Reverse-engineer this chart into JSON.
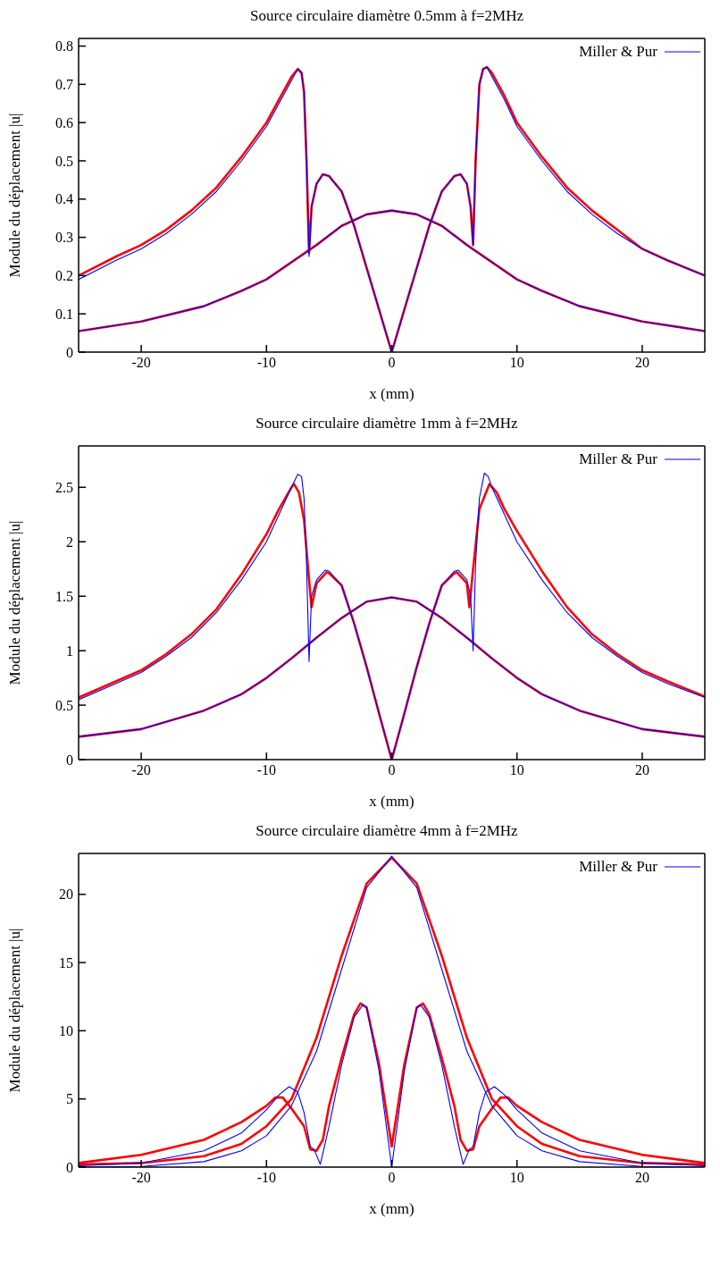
{
  "chart_data": [
    {
      "type": "line",
      "title": "Source circulaire diamètre 0.5mm à f=2MHz",
      "xlabel": "x (mm)",
      "ylabel": "Module du déplacement |u|",
      "xlim": [
        -25,
        25
      ],
      "xticks": [
        -20,
        -10,
        0,
        10,
        20
      ],
      "ylim": [
        0,
        0.82
      ],
      "yticks": [
        0,
        0.1,
        0.2,
        0.3,
        0.4,
        0.5,
        0.6,
        0.7,
        0.8
      ],
      "grid": false,
      "legend": "top right",
      "marker": "none",
      "line_style": "solid",
      "series": [
        {
          "color": "#ff0000",
          "x": [
            -25,
            -22,
            -20,
            -18,
            -16,
            -14,
            -12,
            -10,
            -9,
            -8,
            -7.5,
            -7.2,
            -7,
            -6.8,
            -6.6,
            -6.4,
            -6,
            -5.5,
            -5,
            -4,
            -3,
            -2,
            -1,
            0,
            1,
            2,
            3,
            4,
            5,
            5.5,
            6,
            6.3,
            6.5,
            6.7,
            7,
            7.3,
            7.6,
            8,
            9,
            10,
            12,
            14,
            16,
            18,
            20,
            22,
            25
          ],
          "values": [
            0.2,
            0.25,
            0.28,
            0.32,
            0.37,
            0.43,
            0.51,
            0.6,
            0.66,
            0.72,
            0.74,
            0.73,
            0.68,
            0.5,
            0.26,
            0.38,
            0.44,
            0.465,
            0.46,
            0.42,
            0.33,
            0.22,
            0.11,
            0,
            0.11,
            0.22,
            0.33,
            0.42,
            0.46,
            0.465,
            0.44,
            0.38,
            0.28,
            0.5,
            0.7,
            0.74,
            0.745,
            0.73,
            0.67,
            0.6,
            0.51,
            0.43,
            0.37,
            0.32,
            0.27,
            0.24,
            0.2
          ]
        },
        {
          "color": "#ff0000",
          "x": [
            -25,
            -20,
            -15,
            -12,
            -10,
            -8,
            -6,
            -4,
            -2,
            0,
            2,
            4,
            6,
            8,
            10,
            12,
            15,
            20,
            25
          ],
          "values": [
            0.055,
            0.08,
            0.12,
            0.16,
            0.19,
            0.235,
            0.28,
            0.33,
            0.36,
            0.37,
            0.36,
            0.33,
            0.28,
            0.235,
            0.19,
            0.16,
            0.12,
            0.08,
            0.055
          ]
        },
        {
          "name": "Miller & Pur",
          "color": "#0000ff",
          "x": [
            -25,
            -22,
            -20,
            -18,
            -16,
            -14,
            -12,
            -10,
            -9,
            -8,
            -7.5,
            -7.2,
            -7,
            -6.8,
            -6.6,
            -6.4,
            -6,
            -5.5,
            -5,
            -4,
            -3,
            -2,
            -1,
            0,
            1,
            2,
            3,
            4,
            5,
            5.5,
            6,
            6.3,
            6.5,
            6.7,
            7,
            7.3,
            7.6,
            8,
            9,
            10,
            12,
            14,
            16,
            18,
            20,
            22,
            25
          ],
          "values": [
            0.19,
            0.24,
            0.27,
            0.31,
            0.36,
            0.42,
            0.5,
            0.59,
            0.65,
            0.71,
            0.74,
            0.73,
            0.68,
            0.5,
            0.25,
            0.38,
            0.44,
            0.465,
            0.46,
            0.42,
            0.33,
            0.22,
            0.11,
            0,
            0.11,
            0.22,
            0.33,
            0.42,
            0.46,
            0.465,
            0.44,
            0.38,
            0.28,
            0.5,
            0.7,
            0.74,
            0.745,
            0.72,
            0.66,
            0.59,
            0.5,
            0.42,
            0.36,
            0.31,
            0.27,
            0.24,
            0.2
          ]
        },
        {
          "color": "#0000ff",
          "x": [
            -25,
            -20,
            -15,
            -12,
            -10,
            -8,
            -6,
            -4,
            -2,
            0,
            2,
            4,
            6,
            8,
            10,
            12,
            15,
            20,
            25
          ],
          "values": [
            0.055,
            0.08,
            0.12,
            0.16,
            0.19,
            0.235,
            0.28,
            0.33,
            0.36,
            0.37,
            0.36,
            0.33,
            0.28,
            0.235,
            0.19,
            0.16,
            0.12,
            0.08,
            0.055
          ]
        }
      ]
    },
    {
      "type": "line",
      "title": "Source circulaire diamètre 1mm à f=2MHz",
      "xlabel": "x (mm)",
      "ylabel": "Module du déplacement |u|",
      "xlim": [
        -25,
        25
      ],
      "xticks": [
        -20,
        -10,
        0,
        10,
        20
      ],
      "ylim": [
        0,
        2.88
      ],
      "yticks": [
        0,
        0.5,
        1,
        1.5,
        2,
        2.5
      ],
      "grid": false,
      "legend": "top right",
      "marker": "none",
      "line_style": "solid",
      "series": [
        {
          "color": "#ff0000",
          "x": [
            -25,
            -22,
            -20,
            -18,
            -16,
            -14,
            -12,
            -10,
            -9,
            -8,
            -7.8,
            -7.4,
            -7,
            -6.6,
            -6.4,
            -6,
            -5.2,
            -5,
            -4,
            -3,
            -2,
            -1,
            0,
            1,
            2,
            3,
            4,
            5,
            5.2,
            6,
            6.2,
            6.5,
            7,
            7.8,
            8.4,
            9,
            10,
            12,
            14,
            16,
            18,
            20,
            22,
            25
          ],
          "values": [
            0.57,
            0.72,
            0.82,
            0.97,
            1.15,
            1.38,
            1.7,
            2.07,
            2.3,
            2.5,
            2.53,
            2.45,
            2.2,
            1.65,
            1.4,
            1.62,
            1.72,
            1.71,
            1.6,
            1.25,
            0.85,
            0.42,
            0,
            0.42,
            0.85,
            1.25,
            1.6,
            1.71,
            1.72,
            1.62,
            1.4,
            1.75,
            2.3,
            2.53,
            2.45,
            2.3,
            2.1,
            1.73,
            1.4,
            1.15,
            0.97,
            0.82,
            0.72,
            0.58
          ]
        },
        {
          "color": "#ff0000",
          "x": [
            -25,
            -20,
            -15,
            -12,
            -10,
            -8,
            -6,
            -4,
            -2,
            0,
            2,
            4,
            6,
            8,
            10,
            12,
            15,
            20,
            25
          ],
          "values": [
            0.21,
            0.28,
            0.45,
            0.6,
            0.75,
            0.93,
            1.12,
            1.3,
            1.45,
            1.49,
            1.45,
            1.3,
            1.12,
            0.93,
            0.75,
            0.6,
            0.45,
            0.28,
            0.21
          ]
        },
        {
          "name": "Miller & Pur",
          "color": "#0000ff",
          "x": [
            -25,
            -22,
            -20,
            -18,
            -16,
            -14,
            -12,
            -10,
            -9,
            -8,
            -7.5,
            -7.2,
            -7,
            -6.8,
            -6.6,
            -6.4,
            -6,
            -5.3,
            -5,
            -4,
            -3,
            -2,
            -1,
            0,
            1,
            2,
            3,
            4,
            5,
            5.3,
            6,
            6.3,
            6.5,
            6.7,
            7,
            7.4,
            7.7,
            8,
            9,
            10,
            12,
            14,
            16,
            18,
            20,
            22,
            25
          ],
          "values": [
            0.55,
            0.7,
            0.8,
            0.95,
            1.12,
            1.35,
            1.65,
            2,
            2.25,
            2.5,
            2.62,
            2.6,
            2.4,
            1.8,
            0.9,
            1.5,
            1.65,
            1.74,
            1.73,
            1.6,
            1.25,
            0.85,
            0.42,
            0,
            0.42,
            0.85,
            1.25,
            1.6,
            1.73,
            1.74,
            1.65,
            1.5,
            1,
            1.8,
            2.4,
            2.63,
            2.6,
            2.5,
            2.25,
            2,
            1.65,
            1.35,
            1.12,
            0.95,
            0.8,
            0.7,
            0.57
          ]
        },
        {
          "color": "#0000ff",
          "x": [
            -25,
            -20,
            -15,
            -12,
            -10,
            -8,
            -6,
            -4,
            -2,
            0,
            2,
            4,
            6,
            8,
            10,
            12,
            15,
            20,
            25
          ],
          "values": [
            0.21,
            0.28,
            0.45,
            0.6,
            0.75,
            0.93,
            1.12,
            1.3,
            1.45,
            1.49,
            1.45,
            1.3,
            1.12,
            0.93,
            0.75,
            0.6,
            0.45,
            0.28,
            0.21
          ]
        }
      ]
    },
    {
      "type": "line",
      "title": "Source circulaire diamètre 4mm à f=2MHz",
      "xlabel": "x (mm)",
      "ylabel": "Module du déplacement |u|",
      "xlim": [
        -25,
        25
      ],
      "xticks": [
        -20,
        -10,
        0,
        10,
        20
      ],
      "ylim": [
        0,
        23
      ],
      "yticks": [
        0,
        5,
        10,
        15,
        20
      ],
      "grid": false,
      "legend": "top right",
      "marker": "none",
      "line_style": "solid",
      "series": [
        {
          "color": "#ff0000",
          "x": [
            -25,
            -20,
            -15,
            -12,
            -10,
            -9.3,
            -8.7,
            -8,
            -7,
            -6.5,
            -6,
            -5.5,
            -5,
            -4,
            -3,
            -2.5,
            -2,
            -1,
            0,
            1,
            2,
            2.5,
            3,
            4,
            5,
            5.5,
            6,
            6.5,
            7,
            8,
            8.7,
            9.3,
            10,
            12,
            15,
            20,
            25
          ],
          "values": [
            0.3,
            0.9,
            2,
            3.3,
            4.5,
            5.1,
            5.1,
            4.3,
            3,
            1.3,
            1.2,
            2,
            4.5,
            8,
            11.2,
            12,
            11.7,
            7.5,
            1.5,
            7.5,
            11.7,
            12,
            11.2,
            8,
            4.5,
            2,
            1.2,
            1.3,
            3,
            4.3,
            5.1,
            5.1,
            4.5,
            3.3,
            2,
            0.9,
            0.3
          ]
        },
        {
          "color": "#ff0000",
          "x": [
            -25,
            -20,
            -15,
            -12,
            -10,
            -8,
            -6,
            -4,
            -2,
            0,
            2,
            4,
            6,
            8,
            10,
            12,
            15,
            20,
            25
          ],
          "values": [
            0.2,
            0.3,
            0.8,
            1.7,
            3,
            5,
            9.5,
            15.5,
            20.8,
            22.7,
            20.8,
            15.5,
            9.5,
            5,
            3,
            1.7,
            0.8,
            0.3,
            0.2
          ]
        },
        {
          "name": "Miller & Pur",
          "color": "#0000ff",
          "x": [
            -25,
            -20,
            -15,
            -12,
            -10,
            -9,
            -8.2,
            -7.5,
            -7,
            -6.5,
            -6.2,
            -5.7,
            -5,
            -4,
            -3,
            -2.3,
            -2,
            -1,
            0,
            1,
            2,
            2.3,
            3,
            4,
            5,
            5.7,
            6.2,
            6.5,
            7,
            7.5,
            8.2,
            9,
            10,
            12,
            15,
            20,
            25
          ],
          "values": [
            0.1,
            0.3,
            1.2,
            2.5,
            4.2,
            5.3,
            5.9,
            5.5,
            4,
            1.5,
            1.3,
            0.2,
            3,
            7.5,
            11,
            11.9,
            11.7,
            7,
            0,
            7,
            11.7,
            11.9,
            11,
            7.5,
            3,
            0.2,
            1.3,
            1.5,
            4,
            5.5,
            5.9,
            5.3,
            4.2,
            2.5,
            1.2,
            0.3,
            0.1
          ]
        },
        {
          "color": "#0000ff",
          "x": [
            -25,
            -20,
            -15,
            -12,
            -10,
            -8,
            -6,
            -4,
            -2,
            0,
            2,
            4,
            6,
            8,
            10,
            12,
            15,
            20,
            25
          ],
          "values": [
            0,
            0.05,
            0.4,
            1.2,
            2.3,
            4.5,
            8.5,
            14.5,
            20.5,
            22.8,
            20.5,
            14.5,
            8.5,
            4.5,
            2.3,
            1.2,
            0.4,
            0.05,
            0
          ]
        }
      ]
    }
  ]
}
